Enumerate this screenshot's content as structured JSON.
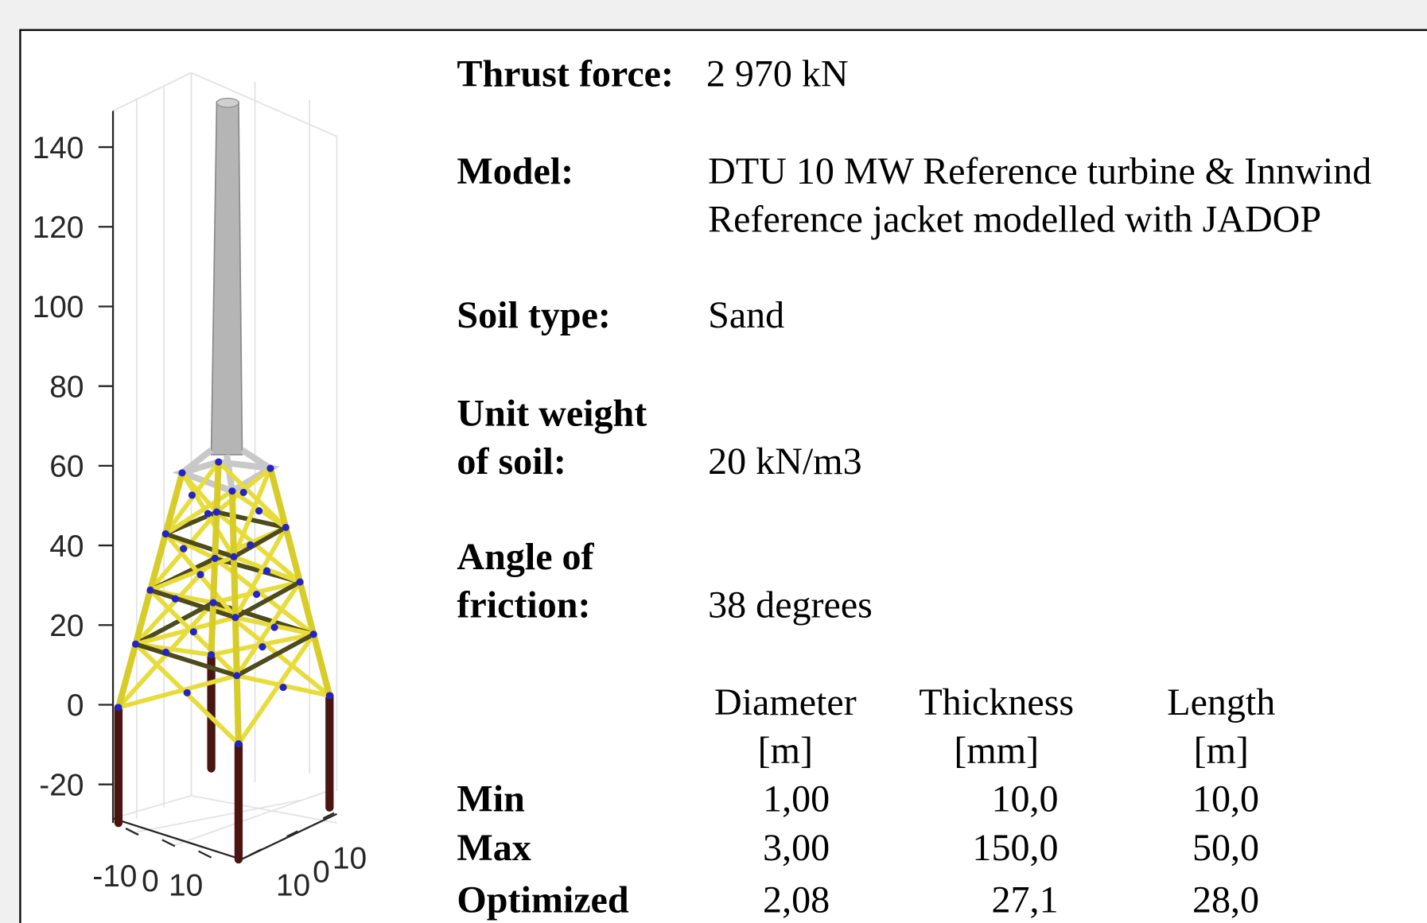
{
  "plot": {
    "zticks": [
      140,
      120,
      100,
      80,
      60,
      40,
      20,
      0,
      -20
    ],
    "xticks": [
      -10,
      0,
      10
    ],
    "yticks": [
      10,
      0,
      10
    ]
  },
  "info": {
    "thrust_label": "Thrust force:",
    "thrust_value": "2 970 kN",
    "model_label": "Model:",
    "model_lines": [
      "DTU 10 MW Reference turbine & Innwind",
      "Reference jacket modelled with JADOP"
    ],
    "soil_label": "Soil type:",
    "soil_value": "Sand",
    "weight_label": [
      "Unit weight",
      "of soil:"
    ],
    "weight_value": "20 kN/m3",
    "friction_label": [
      "Angle of",
      "friction:"
    ],
    "friction_value": "38 degrees"
  },
  "table": {
    "headers": [
      [
        "Diameter",
        "[m]"
      ],
      [
        "Thickness",
        "[mm]"
      ],
      [
        "Length",
        "[m]"
      ]
    ],
    "rows": [
      [
        "Min",
        "1,00",
        "10,0",
        "10,0"
      ],
      [
        "Max",
        "3,00",
        "150,0",
        "50,0"
      ],
      [
        "Optimized",
        "2,08",
        "27,1",
        "28,0"
      ]
    ]
  }
}
